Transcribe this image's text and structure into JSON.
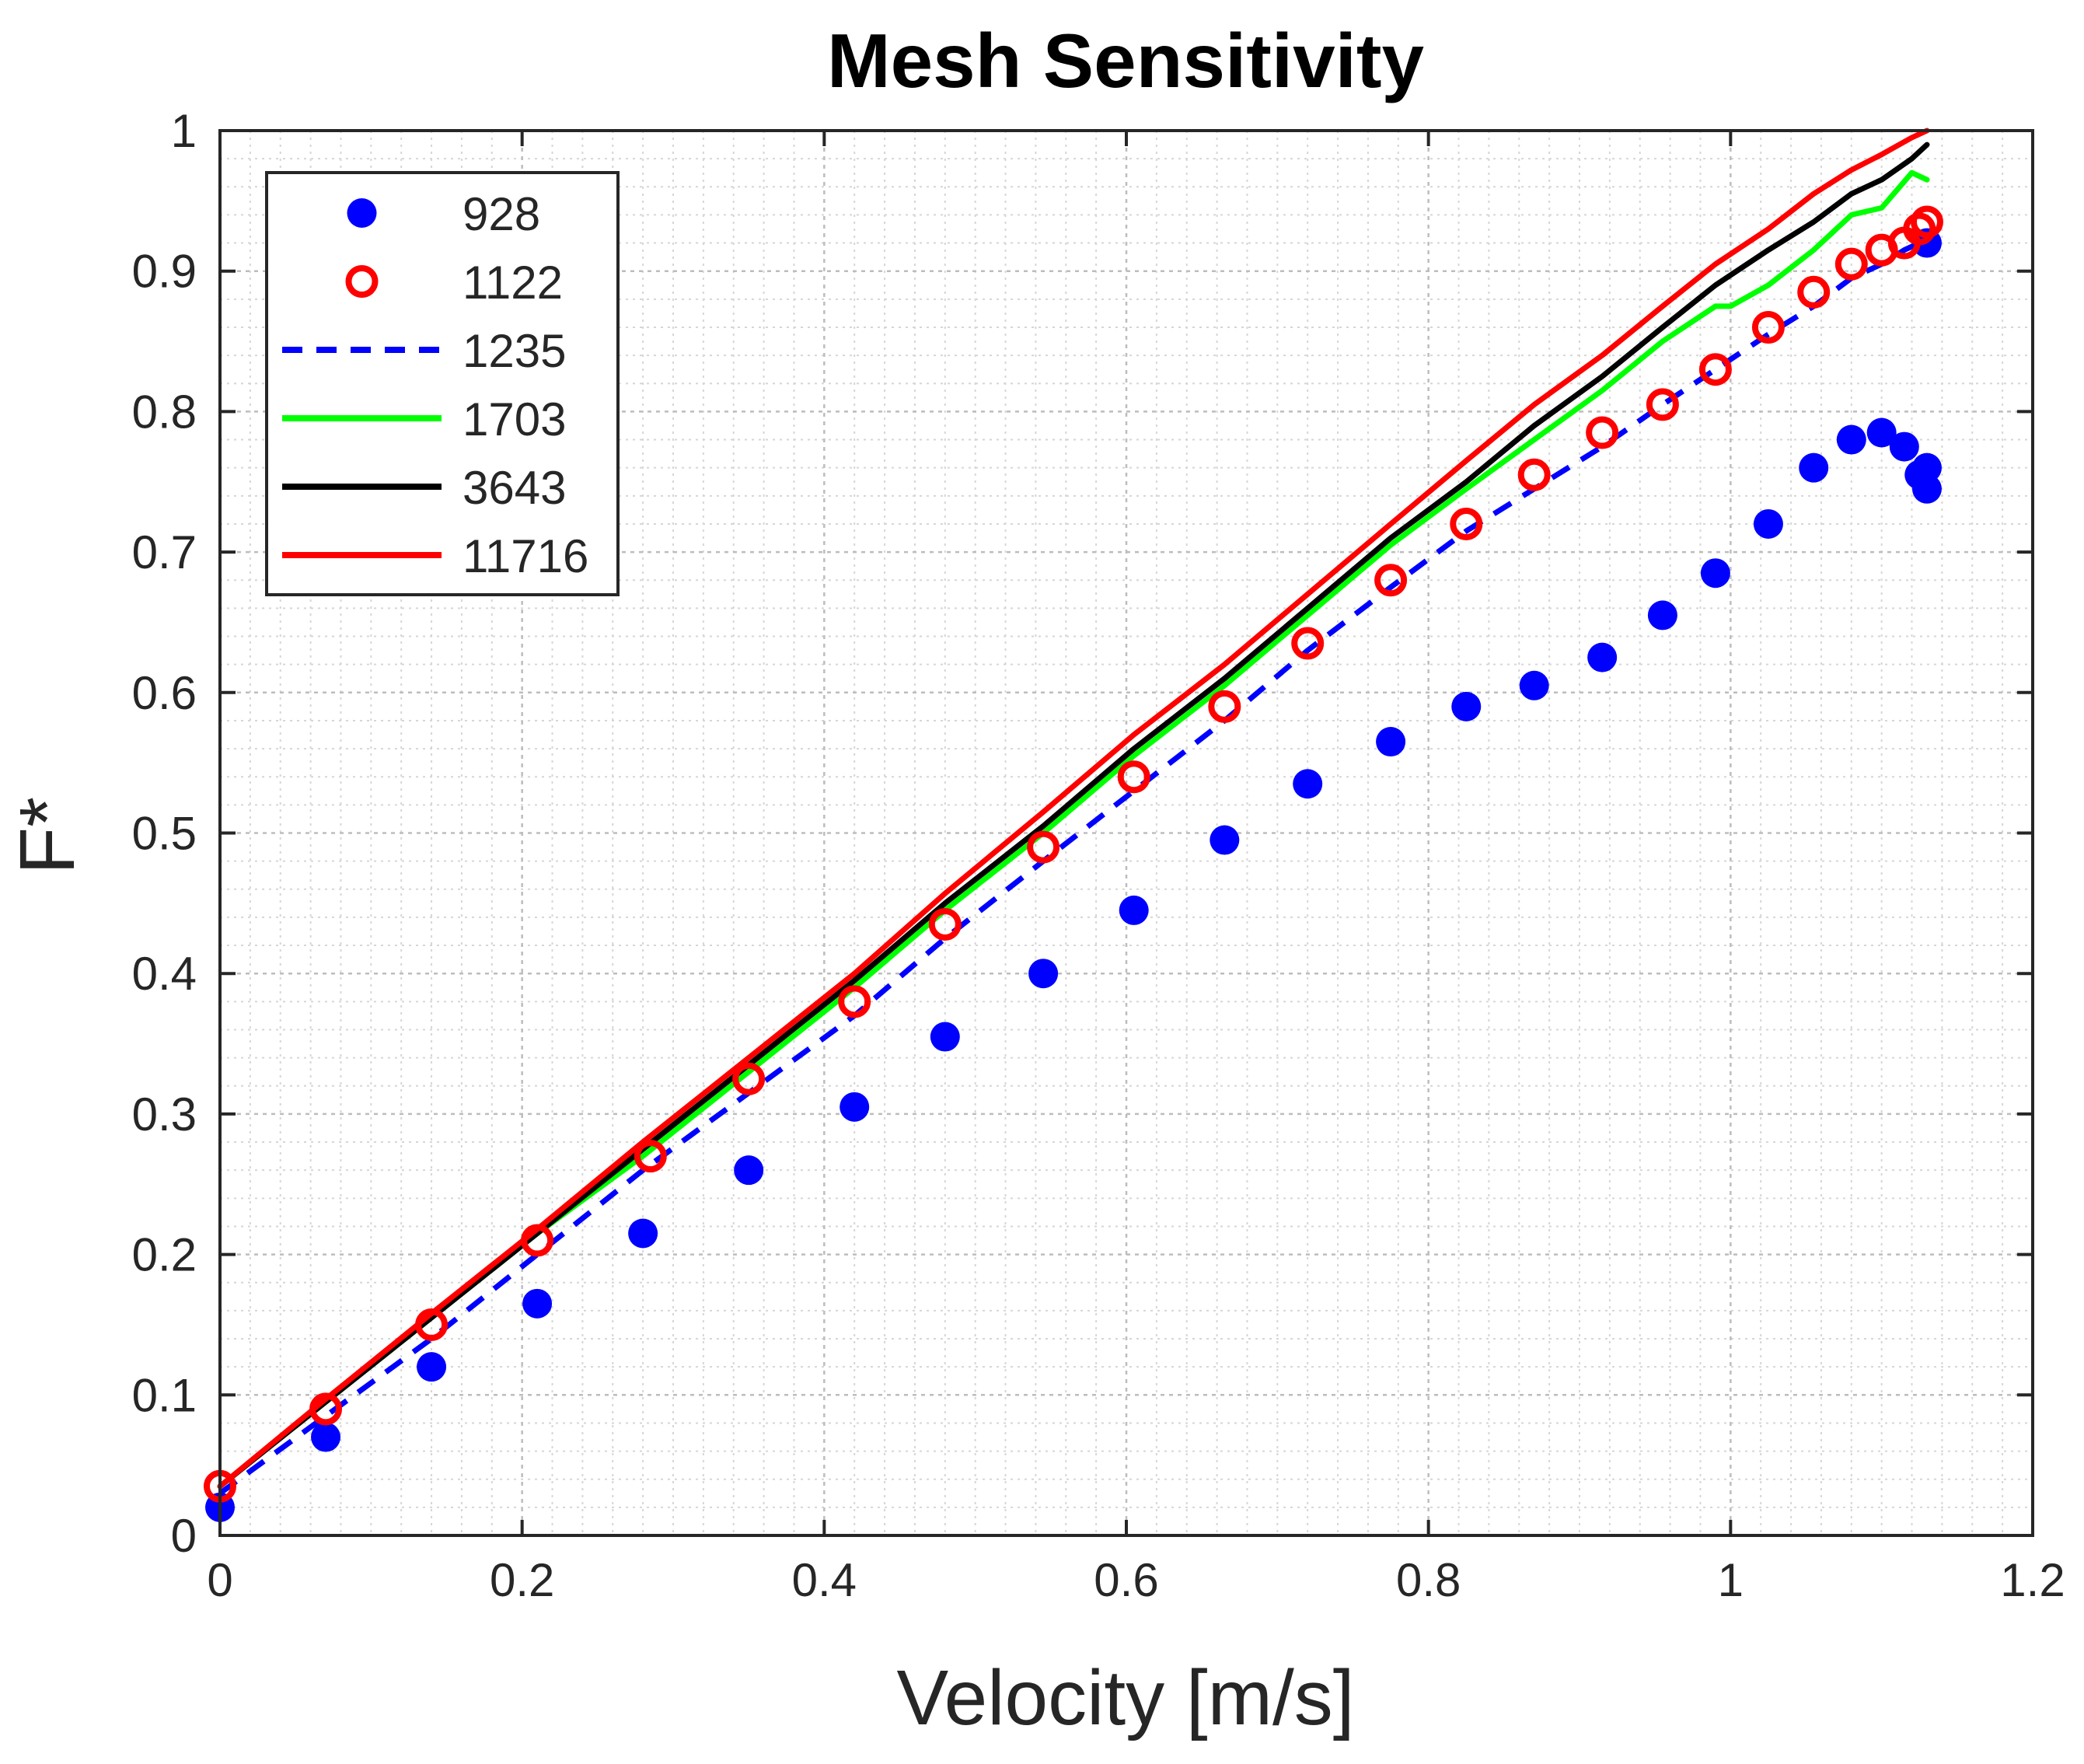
{
  "chart_data": {
    "type": "line",
    "title": "Mesh Sensitivity",
    "xlabel": "Velocity [m/s]",
    "ylabel": "F*",
    "xlim": [
      0,
      1.2
    ],
    "ylim": [
      0,
      1
    ],
    "xticks": [
      0,
      0.2,
      0.4,
      0.6,
      0.8,
      1,
      1.2
    ],
    "yticks": [
      0,
      0.1,
      0.2,
      0.3,
      0.4,
      0.5,
      0.6,
      0.7,
      0.8,
      0.9,
      1
    ],
    "xtick_labels": [
      "0",
      "0.2",
      "0.4",
      "0.6",
      "0.8",
      "1",
      "1.2"
    ],
    "ytick_labels": [
      "0",
      "0.1",
      "0.2",
      "0.3",
      "0.4",
      "0.5",
      "0.6",
      "0.7",
      "0.8",
      "0.9",
      "1"
    ],
    "grid": true,
    "minor_grid": true,
    "legend_position": "top-left",
    "series": [
      {
        "name": "928",
        "style": "filled-dot",
        "color": "#0000ff",
        "x": [
          0,
          0.07,
          0.14,
          0.21,
          0.28,
          0.35,
          0.42,
          0.48,
          0.545,
          0.605,
          0.665,
          0.72,
          0.775,
          0.825,
          0.87,
          0.915,
          0.955,
          0.99,
          1.025,
          1.055,
          1.08,
          1.1,
          1.115,
          1.125,
          1.13,
          1.13,
          1.13
        ],
        "y": [
          0.02,
          0.07,
          0.12,
          0.165,
          0.215,
          0.26,
          0.305,
          0.355,
          0.4,
          0.445,
          0.495,
          0.535,
          0.565,
          0.59,
          0.605,
          0.625,
          0.655,
          0.685,
          0.72,
          0.76,
          0.78,
          0.785,
          0.775,
          0.755,
          0.76,
          0.745,
          0.92
        ]
      },
      {
        "name": "1122",
        "style": "open-circle",
        "color": "#ff0000",
        "x": [
          0,
          0.07,
          0.14,
          0.21,
          0.285,
          0.35,
          0.42,
          0.48,
          0.545,
          0.605,
          0.665,
          0.72,
          0.775,
          0.825,
          0.87,
          0.915,
          0.955,
          0.99,
          1.025,
          1.055,
          1.08,
          1.1,
          1.115,
          1.125,
          1.13
        ],
        "y": [
          0.035,
          0.09,
          0.15,
          0.21,
          0.27,
          0.325,
          0.38,
          0.435,
          0.49,
          0.54,
          0.59,
          0.635,
          0.68,
          0.72,
          0.755,
          0.785,
          0.805,
          0.83,
          0.86,
          0.885,
          0.905,
          0.915,
          0.92,
          0.93,
          0.935
        ]
      },
      {
        "name": "1235",
        "style": "dashed",
        "color": "#0000ff",
        "x": [
          0,
          0.07,
          0.14,
          0.21,
          0.28,
          0.35,
          0.42,
          0.48,
          0.545,
          0.605,
          0.665,
          0.72,
          0.775,
          0.825,
          0.87,
          0.915,
          0.955,
          0.99,
          1.025,
          1.055,
          1.08,
          1.1,
          1.115,
          1.125
        ],
        "y": [
          0.03,
          0.085,
          0.14,
          0.2,
          0.26,
          0.315,
          0.37,
          0.425,
          0.48,
          0.53,
          0.58,
          0.63,
          0.675,
          0.715,
          0.745,
          0.775,
          0.805,
          0.83,
          0.855,
          0.875,
          0.895,
          0.905,
          0.915,
          0.92
        ]
      },
      {
        "name": "1703",
        "style": "solid",
        "color": "#00ff00",
        "x": [
          0,
          0.07,
          0.14,
          0.21,
          0.28,
          0.35,
          0.42,
          0.48,
          0.545,
          0.605,
          0.665,
          0.72,
          0.775,
          0.825,
          0.87,
          0.915,
          0.955,
          0.99,
          1.0,
          1.025,
          1.055,
          1.08,
          1.1,
          1.12,
          1.13
        ],
        "y": [
          0.035,
          0.095,
          0.155,
          0.215,
          0.27,
          0.33,
          0.39,
          0.445,
          0.5,
          0.555,
          0.605,
          0.655,
          0.705,
          0.745,
          0.78,
          0.815,
          0.85,
          0.875,
          0.875,
          0.89,
          0.915,
          0.94,
          0.945,
          0.97,
          0.965
        ]
      },
      {
        "name": "3643",
        "style": "solid",
        "color": "#000000",
        "x": [
          0,
          0.07,
          0.14,
          0.21,
          0.28,
          0.35,
          0.42,
          0.48,
          0.545,
          0.605,
          0.665,
          0.72,
          0.775,
          0.825,
          0.87,
          0.915,
          0.955,
          0.99,
          1.025,
          1.055,
          1.08,
          1.1,
          1.12,
          1.13
        ],
        "y": [
          0.035,
          0.095,
          0.155,
          0.215,
          0.275,
          0.335,
          0.395,
          0.45,
          0.505,
          0.56,
          0.61,
          0.66,
          0.71,
          0.75,
          0.79,
          0.825,
          0.86,
          0.89,
          0.915,
          0.935,
          0.955,
          0.965,
          0.98,
          0.99
        ]
      },
      {
        "name": "11716",
        "style": "solid",
        "color": "#ff0000",
        "x": [
          0,
          0.07,
          0.14,
          0.21,
          0.28,
          0.35,
          0.42,
          0.48,
          0.545,
          0.605,
          0.665,
          0.72,
          0.775,
          0.825,
          0.87,
          0.915,
          0.955,
          0.99,
          1.025,
          1.055,
          1.08,
          1.1,
          1.12,
          1.13
        ],
        "y": [
          0.035,
          0.097,
          0.158,
          0.218,
          0.28,
          0.34,
          0.4,
          0.457,
          0.515,
          0.57,
          0.62,
          0.67,
          0.72,
          0.765,
          0.805,
          0.84,
          0.875,
          0.905,
          0.93,
          0.955,
          0.972,
          0.983,
          0.995,
          1.0
        ]
      }
    ]
  }
}
